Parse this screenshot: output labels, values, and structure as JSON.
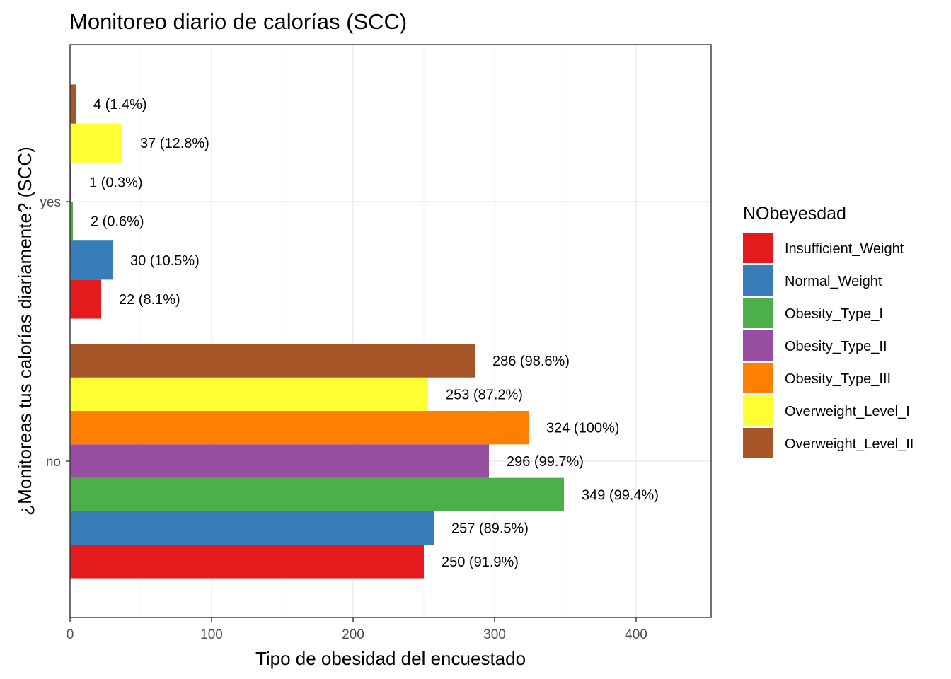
{
  "chart_data": {
    "type": "bar",
    "orientation": "horizontal",
    "title": "Monitoreo diario de calorías (SCC)",
    "xlabel": "Tipo de obesidad del encuestado",
    "ylabel": "¿Monitoreas tus calorías diariamente? (SCC)",
    "categories": [
      "no",
      "yes"
    ],
    "xlim": [
      0,
      453
    ],
    "x_ticks": [
      0,
      100,
      200,
      300,
      400
    ],
    "grid": true,
    "legend": {
      "title": "NObeyesdad",
      "position": "right"
    },
    "series": [
      {
        "name": "Insufficient_Weight",
        "color": "#E41A1C",
        "values": [
          250,
          22
        ],
        "labels": [
          "250 (91.9%)",
          "22 (8.1%)"
        ]
      },
      {
        "name": "Normal_Weight",
        "color": "#377EB8",
        "values": [
          257,
          30
        ],
        "labels": [
          "257 (89.5%)",
          "30 (10.5%)"
        ]
      },
      {
        "name": "Obesity_Type_I",
        "color": "#4DAF4A",
        "values": [
          349,
          2
        ],
        "labels": [
          "349 (99.4%)",
          "2 (0.6%)"
        ]
      },
      {
        "name": "Obesity_Type_II",
        "color": "#984EA3",
        "values": [
          296,
          1
        ],
        "labels": [
          "296 (99.7%)",
          "1 (0.3%)"
        ]
      },
      {
        "name": "Obesity_Type_III",
        "color": "#FF7F00",
        "values": [
          324,
          null
        ],
        "labels": [
          "324 (100%)",
          null
        ]
      },
      {
        "name": "Overweight_Level_I",
        "color": "#FFFF33",
        "values": [
          253,
          37
        ],
        "labels": [
          "253 (87.2%)",
          "37 (12.8%)"
        ]
      },
      {
        "name": "Overweight_Level_II",
        "color": "#A65628",
        "values": [
          286,
          4
        ],
        "labels": [
          "286 (98.6%)",
          "4 (1.4%)"
        ]
      }
    ]
  }
}
